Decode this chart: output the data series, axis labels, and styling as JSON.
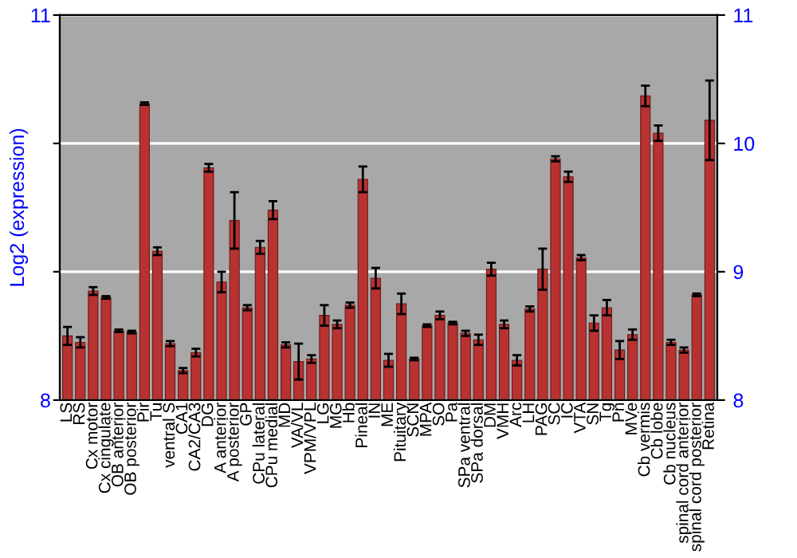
{
  "chart_data": {
    "type": "bar",
    "ylabel": "Log2 (expression)",
    "categories": [
      "LS",
      "RS",
      "Cx motor",
      "Cx cingulate",
      "OB anterior",
      "OB posterior",
      "Pir",
      "Tu",
      "ventral S",
      "CA1",
      "CA2/CA3",
      "DG",
      "A anterior",
      "A posterior",
      "GP",
      "CPu lateral",
      "CPu medial",
      "MD",
      "VA/VL",
      "VPM/VPL",
      "LG",
      "MG",
      "Hb",
      "Pineal",
      "IN",
      "ME",
      "Pituitary",
      "SCN",
      "MPA",
      "SO",
      "Pa",
      "SPa ventral",
      "SPa dorsal",
      "DM",
      "VMH",
      "Arc",
      "LH",
      "PAG",
      "SC",
      "IC",
      "VTA",
      "SN",
      "Tg",
      "Pn",
      "MVe",
      "Cb vermis",
      "Cb lobe",
      "Cb nucleus",
      "spinal cord anterior",
      "spinal cord posterior",
      "Retina"
    ],
    "values": [
      8.5,
      8.45,
      8.85,
      8.8,
      8.54,
      8.53,
      10.31,
      9.16,
      8.44,
      8.23,
      8.37,
      9.81,
      8.92,
      9.4,
      8.72,
      9.19,
      9.48,
      8.43,
      8.3,
      8.32,
      8.66,
      8.59,
      8.74,
      9.72,
      8.95,
      8.31,
      8.75,
      8.32,
      8.58,
      8.66,
      8.6,
      8.52,
      8.47,
      9.02,
      8.59,
      8.31,
      8.71,
      9.02,
      9.88,
      9.74,
      9.11,
      8.6,
      8.72,
      8.39,
      8.51,
      10.37,
      10.08,
      8.45,
      8.39,
      8.82,
      10.18
    ],
    "errors": [
      0.07,
      0.04,
      0.03,
      0.01,
      0.01,
      0.01,
      0.01,
      0.03,
      0.02,
      0.02,
      0.03,
      0.03,
      0.08,
      0.22,
      0.02,
      0.05,
      0.07,
      0.02,
      0.14,
      0.03,
      0.08,
      0.03,
      0.02,
      0.1,
      0.08,
      0.05,
      0.08,
      0.01,
      0.01,
      0.03,
      0.01,
      0.02,
      0.04,
      0.05,
      0.03,
      0.04,
      0.02,
      0.16,
      0.02,
      0.04,
      0.02,
      0.06,
      0.06,
      0.07,
      0.04,
      0.08,
      0.06,
      0.02,
      0.02,
      0.01,
      0.31
    ],
    "color": "#b83232",
    "ylim": [
      8,
      11
    ],
    "yticks": [
      8,
      {
        "value": 9,
        "label": null
      },
      {
        "value": 10,
        "label": null
      },
      11
    ],
    "y2lim": [
      8,
      11
    ],
    "y2ticks": [
      8,
      9,
      10,
      11
    ],
    "grid": "y"
  }
}
